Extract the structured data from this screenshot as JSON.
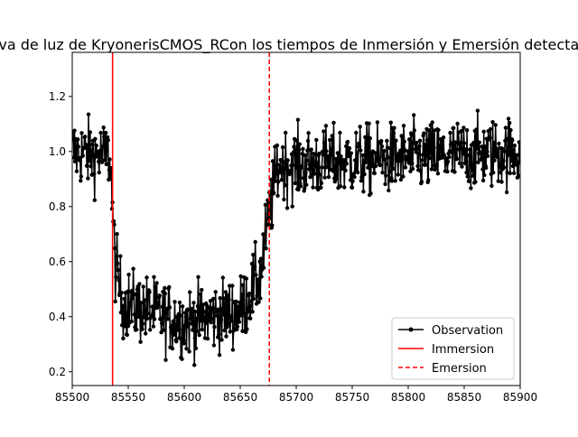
{
  "chart_data": {
    "type": "line",
    "title": "Curva de luz de KryonerisCMOS_RCon los tiempos de Inmersión y Emersión detectados",
    "xlabel": "",
    "ylabel": "",
    "xlim": [
      85500,
      85900
    ],
    "ylim": [
      0.15,
      1.36
    ],
    "x_ticks": [
      85500,
      85550,
      85600,
      85650,
      85700,
      85750,
      85800,
      85850,
      85900
    ],
    "y_ticks": [
      0.2,
      0.4,
      0.6,
      0.8,
      1.0,
      1.2
    ],
    "x_tick_labels": [
      "85500",
      "85550",
      "85600",
      "85650",
      "85700",
      "85750",
      "85800",
      "85850",
      "85900"
    ],
    "y_tick_labels": [
      "0.2",
      "0.4",
      "0.6",
      "0.8",
      "1.0",
      "1.2"
    ],
    "grid": false,
    "legend_position": "lower-right",
    "immersion_time": 85536,
    "emersion_time": 85676,
    "series": [
      {
        "name": "Observation",
        "color": "#000000",
        "marker": "dot",
        "profile": [
          {
            "x": 85500,
            "y": 1.0
          },
          {
            "x": 85534,
            "y": 0.98
          },
          {
            "x": 85538,
            "y": 0.6
          },
          {
            "x": 85545,
            "y": 0.45
          },
          {
            "x": 85600,
            "y": 0.38
          },
          {
            "x": 85650,
            "y": 0.42
          },
          {
            "x": 85668,
            "y": 0.55
          },
          {
            "x": 85676,
            "y": 0.78
          },
          {
            "x": 85684,
            "y": 0.95
          },
          {
            "x": 85900,
            "y": 1.0
          }
        ],
        "scatter_amplitude": 0.09
      },
      {
        "name": "Immersion",
        "color": "#ff0000",
        "style": "solid"
      },
      {
        "name": "Emersion",
        "color": "#ff0000",
        "style": "dashed"
      }
    ]
  }
}
